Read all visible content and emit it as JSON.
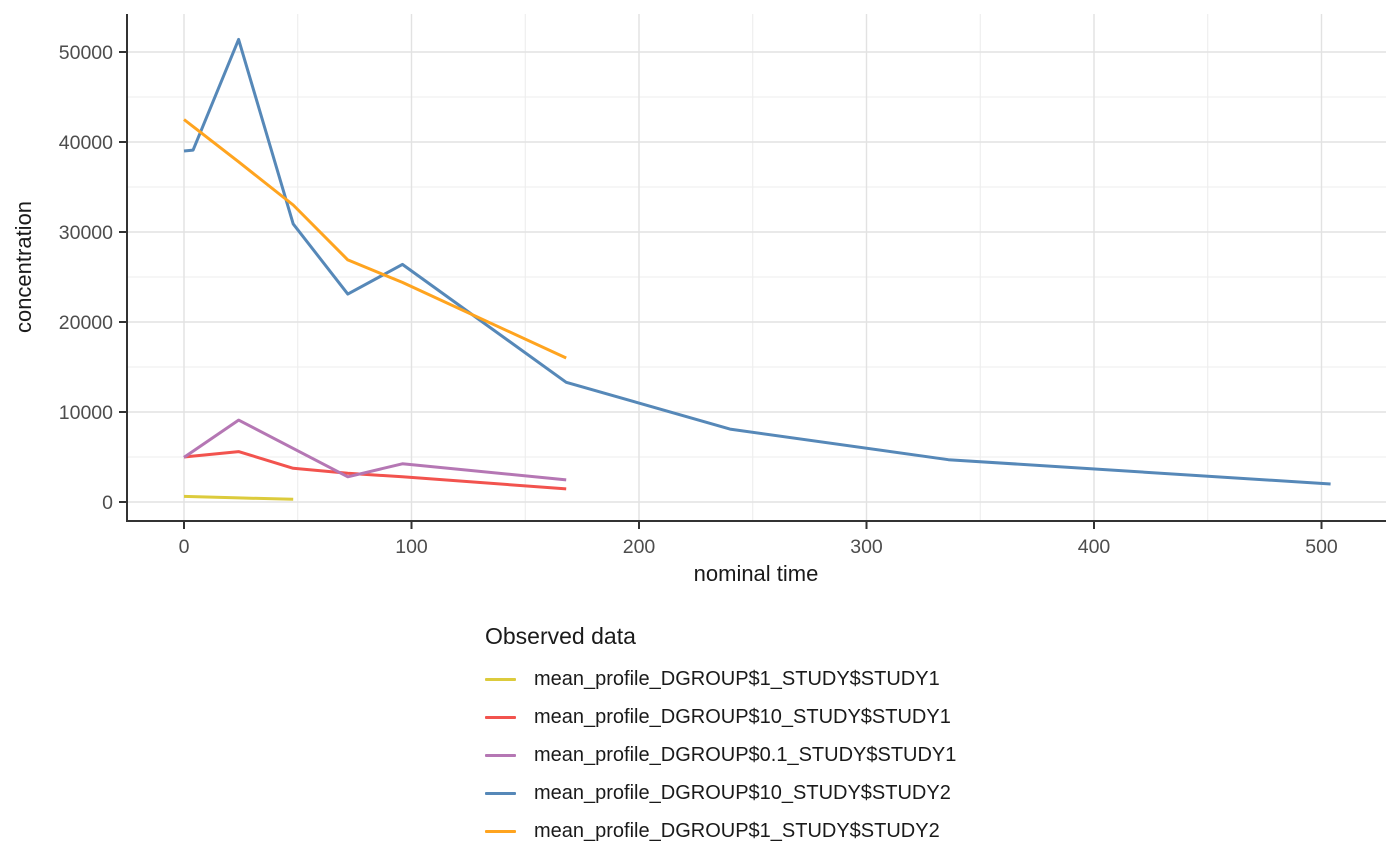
{
  "chart_data": {
    "type": "line",
    "title": "",
    "xlabel": "nominal time",
    "ylabel": "concentration",
    "x_axis": {
      "ticks": [
        0,
        100,
        200,
        300,
        400,
        500
      ],
      "range": [
        -25,
        528
      ],
      "minor_grid": true
    },
    "y_axis": {
      "ticks": [
        0,
        10000,
        20000,
        30000,
        40000,
        50000
      ],
      "range": [
        -2100,
        54200
      ],
      "minor_grid": true
    },
    "grid": "on",
    "legend": {
      "title": "Observed data",
      "position": "bottom-left"
    },
    "colors": {
      "grid_major": "#E2E2E2",
      "grid_minor": "#EDEDED",
      "axis_line": "#333333",
      "tick_label": "#4d4d4d"
    },
    "series": [
      {
        "name": "mean_profile_DGROUP$1_STUDY$STUDY1",
        "color": "#DCCB3C",
        "x": [
          0,
          24,
          48
        ],
        "y": [
          620,
          460,
          300
        ]
      },
      {
        "name": "mean_profile_DGROUP$10_STUDY$STUDY1",
        "color": "#F2534E",
        "x": [
          0,
          24,
          48,
          72,
          96,
          168
        ],
        "y": [
          5000,
          5600,
          3750,
          3200,
          2800,
          1450
        ]
      },
      {
        "name": "mean_profile_DGROUP$0.1_STUDY$STUDY1",
        "color": "#B577B4",
        "x": [
          0,
          24,
          72,
          96,
          168
        ],
        "y": [
          4950,
          9100,
          2800,
          4250,
          2450
        ]
      },
      {
        "name": "mean_profile_DGROUP$10_STUDY$STUDY2",
        "color": "#5688B8",
        "x": [
          0,
          4,
          24,
          48,
          72,
          96,
          168,
          240,
          336,
          504
        ],
        "y": [
          39000,
          39100,
          51400,
          30900,
          23100,
          26400,
          13300,
          8100,
          4700,
          2000
        ]
      },
      {
        "name": "mean_profile_DGROUP$1_STUDY$STUDY2",
        "color": "#FFA41F",
        "x": [
          0,
          24,
          48,
          72,
          96,
          168
        ],
        "y": [
          42500,
          37800,
          33000,
          26900,
          24400,
          16000
        ]
      }
    ]
  }
}
